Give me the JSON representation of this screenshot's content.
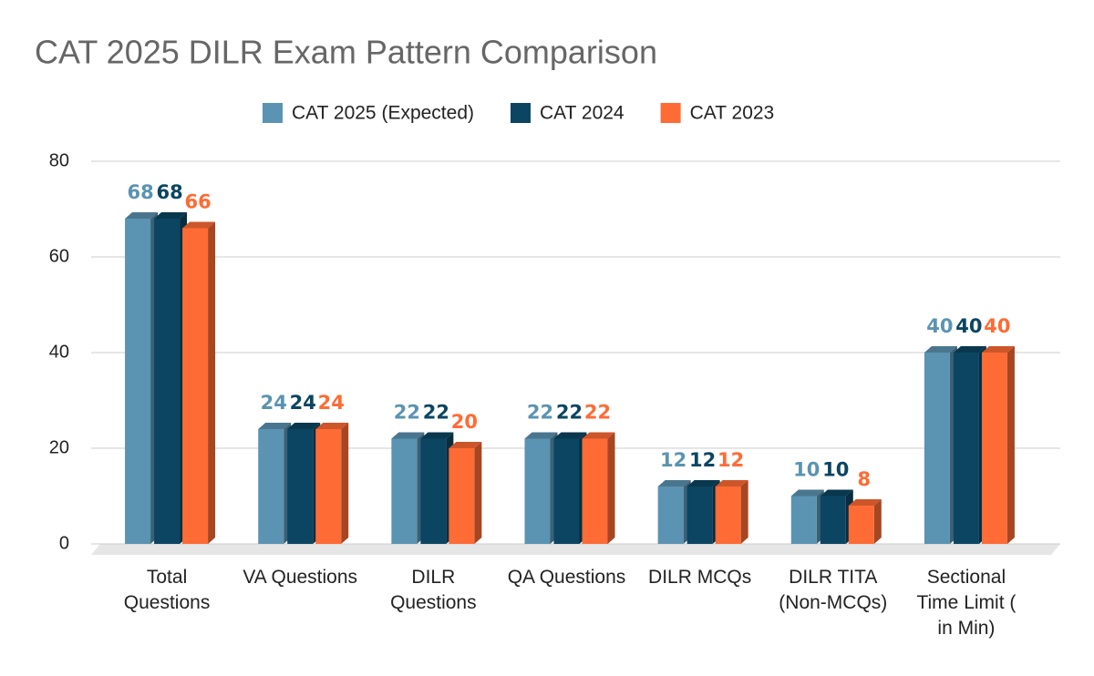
{
  "chart_data": {
    "type": "bar3d",
    "title": "CAT 2025 DILR Exam Pattern Comparison",
    "categories": [
      "Total Questions",
      "VA Questions",
      "DILR Questions",
      "QA Questions",
      "DILR MCQs",
      "DILR TITA (Non-MCQs)",
      "Sectional Time Limit ( in Min)"
    ],
    "series": [
      {
        "name": "CAT 2025 (Expected)",
        "color": "#5b93b2",
        "values": [
          68,
          24,
          22,
          22,
          12,
          10,
          40
        ]
      },
      {
        "name": "CAT 2024",
        "color": "#0b4561",
        "values": [
          68,
          24,
          22,
          22,
          12,
          10,
          40
        ]
      },
      {
        "name": "CAT 2023",
        "color": "#ff6b35",
        "values": [
          66,
          24,
          20,
          22,
          12,
          8,
          40
        ]
      }
    ],
    "ylim": [
      0,
      80
    ],
    "yticks": [
      0,
      20,
      40,
      60,
      80
    ],
    "grid": true,
    "legend": "top"
  }
}
